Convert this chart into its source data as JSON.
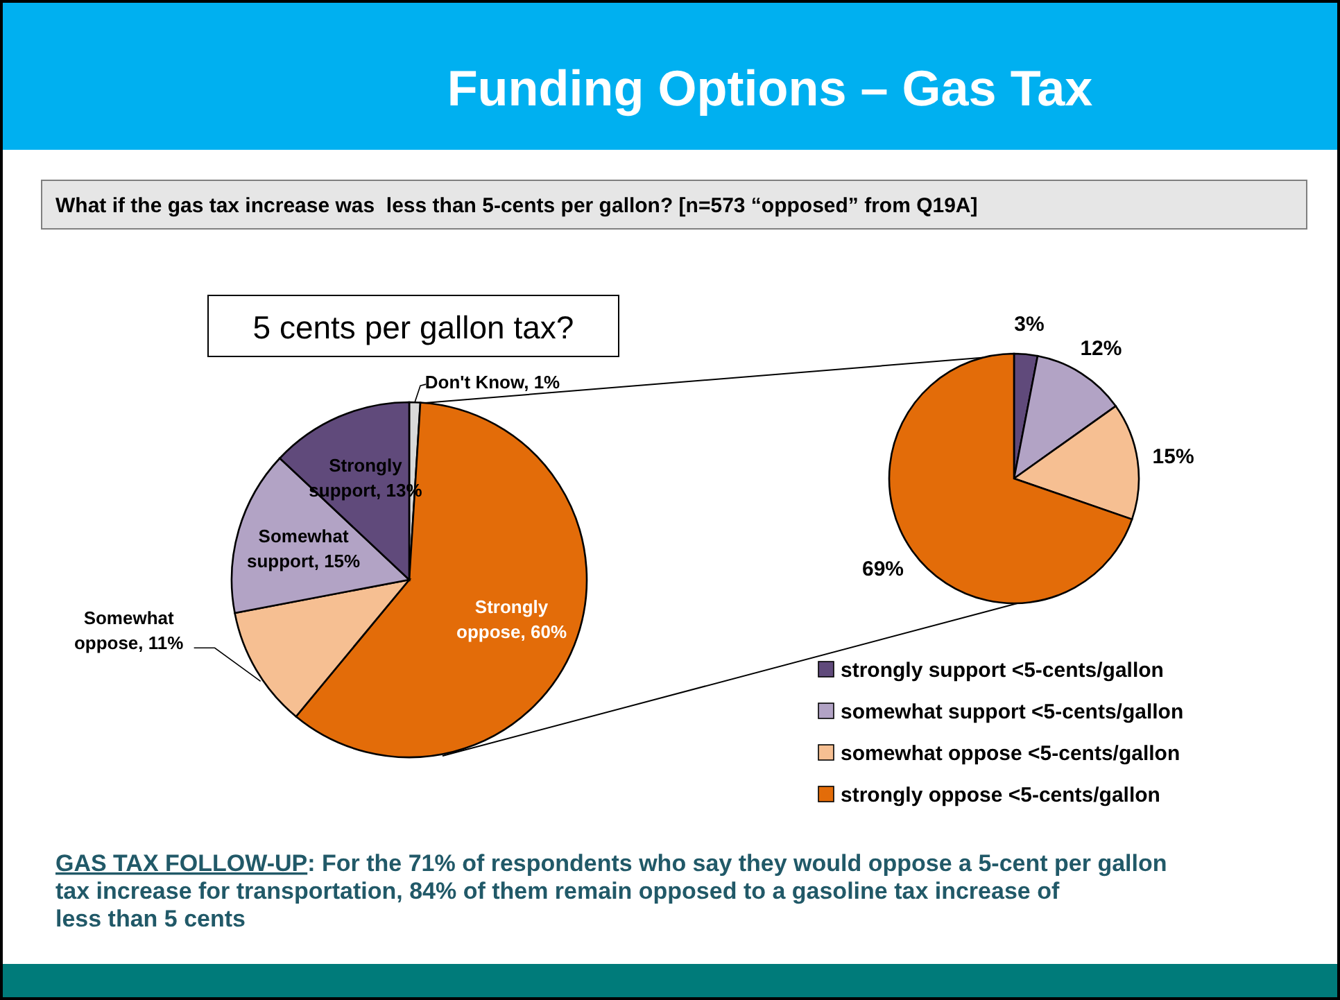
{
  "chart_data": [
    {
      "type": "pie",
      "title": "Funding Options – Gas Tax",
      "subtitle": "What if the gas tax increase was  less than 5-cents per gallon? [n=573 “opposed” from Q19A]",
      "annotations": [
        "5 cents per gallon tax?",
        "GAS TAX FOLLOW-UP: For the 71% of respondents who say they would oppose a 5-cent per gallon tax increase for transportation, 84% of them remain opposed to a gasoline tax increase of less than 5 cents"
      ],
      "categories": [
        "Don't Know",
        "Strongly oppose",
        "Somewhat oppose",
        "Somewhat support",
        "Strongly support"
      ],
      "values": [
        1,
        60,
        11,
        15,
        13
      ],
      "value_labels": [
        "1%",
        "60%",
        "11%",
        "15%",
        "13%"
      ],
      "colors": [
        "#d9d9d9",
        "#e36c09",
        "#f6bf92",
        "#b2a3c5",
        "#604a7b"
      ],
      "legend": false
    },
    {
      "type": "pie",
      "categories": [
        "strongly support <5-cents/gallon",
        "somewhat support <5-cents/gallon",
        "somewhat oppose <5-cents/gallon",
        "strongly oppose <5-cents/gallon"
      ],
      "values": [
        3,
        12,
        15,
        69
      ],
      "colors": [
        "#604a7b",
        "#b2a3c5",
        "#f6bf92",
        "#e36c09"
      ],
      "value_labels": [
        "3%",
        "12%",
        "15%",
        "69%"
      ],
      "legend": "bottom"
    }
  ]
}
